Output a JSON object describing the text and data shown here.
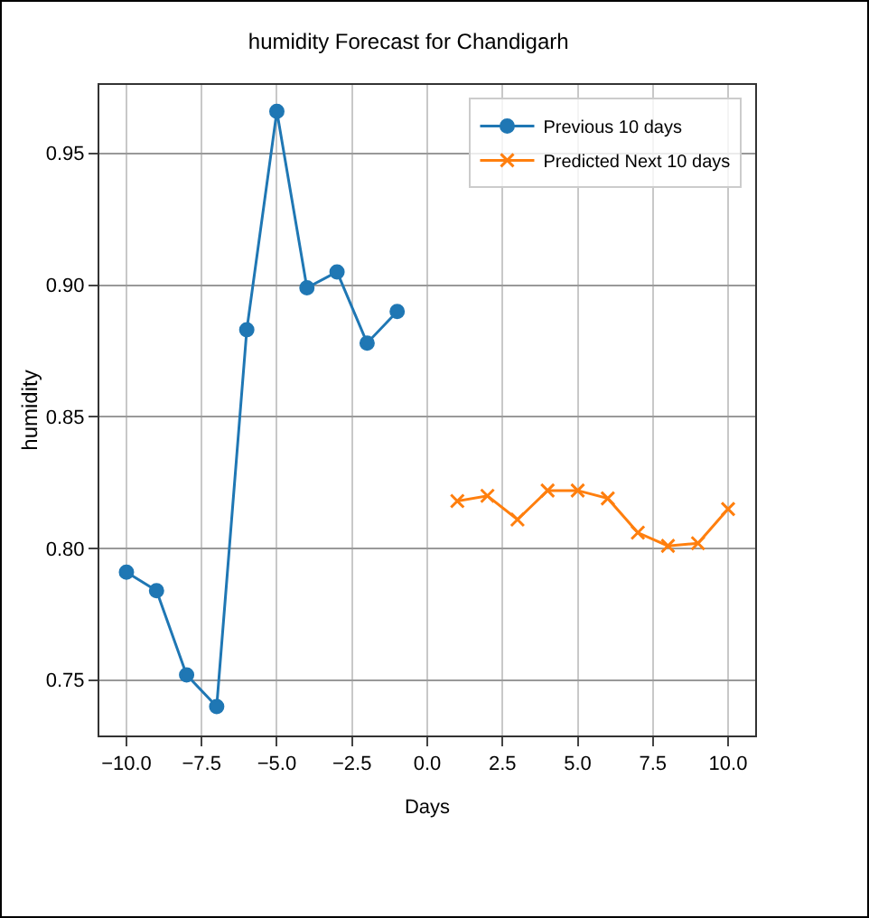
{
  "chart_data": {
    "type": "line",
    "title": "humidity Forecast for Chandigarh",
    "xlabel": "Days",
    "ylabel": "humidity",
    "xlim": [
      -10.9,
      10.9
    ],
    "xticks": [
      {
        "value": -10,
        "label": "−10.0"
      },
      {
        "value": -7.5,
        "label": "−7.5"
      },
      {
        "value": -5,
        "label": "−5.0"
      },
      {
        "value": -2.5,
        "label": "−2.5"
      },
      {
        "value": 0,
        "label": "0.0"
      },
      {
        "value": 2.5,
        "label": "2.5"
      },
      {
        "value": 5,
        "label": "5.0"
      },
      {
        "value": 7.5,
        "label": "7.5"
      },
      {
        "value": 10,
        "label": "10.0"
      }
    ],
    "ylim": [
      0.729,
      0.976
    ],
    "yticks": [
      {
        "value": 0.75,
        "label": "0.75"
      },
      {
        "value": 0.8,
        "label": "0.80"
      },
      {
        "value": 0.85,
        "label": "0.85"
      },
      {
        "value": 0.9,
        "label": "0.90"
      },
      {
        "value": 0.95,
        "label": "0.95"
      }
    ],
    "grid": true,
    "legend": "top right",
    "series": [
      {
        "name": "Previous 10 days",
        "color": "#1f77b4",
        "marker": "circle",
        "x": [
          -10,
          -9,
          -8,
          -7,
          -6,
          -5,
          -4,
          -3,
          -2,
          -1
        ],
        "values": [
          0.791,
          0.784,
          0.752,
          0.74,
          0.883,
          0.966,
          0.899,
          0.905,
          0.878,
          0.89
        ]
      },
      {
        "name": "Predicted Next 10 days",
        "color": "#ff7f0e",
        "marker": "cross",
        "x": [
          1,
          2,
          3,
          4,
          5,
          6,
          7,
          8,
          9,
          10
        ],
        "values": [
          0.818,
          0.82,
          0.811,
          0.822,
          0.822,
          0.819,
          0.806,
          0.801,
          0.802,
          0.815
        ]
      }
    ]
  }
}
